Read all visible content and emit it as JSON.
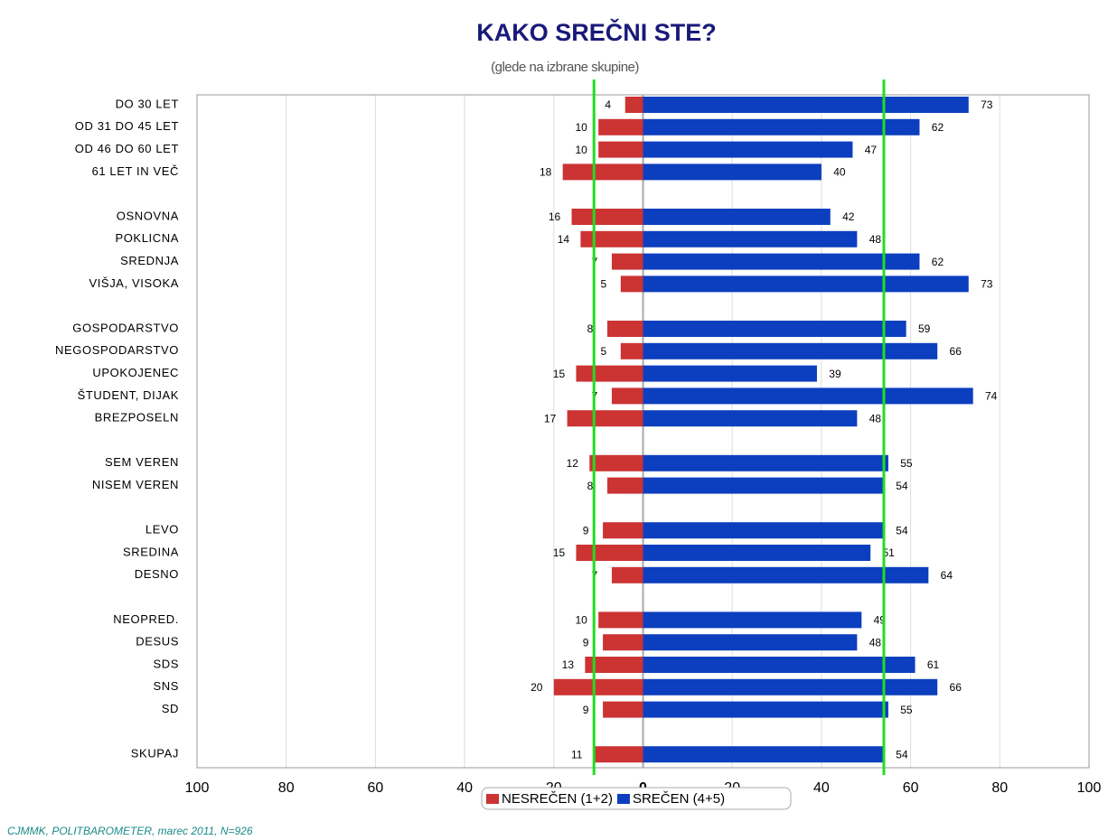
{
  "chart_data": {
    "type": "diverging_bar",
    "title": "KAKO SREČNI STE?",
    "subtitle": "(glede na izbrane skupine)",
    "source": "CJMMK, POLITBAROMETER, marec 2011, N=926",
    "categories": [
      "DO 30 LET",
      "OD 31 DO 45 LET",
      "OD 46 DO 60 LET",
      "61 LET IN VEČ",
      null,
      "OSNOVNA",
      "POKLICNA",
      "SREDNJA",
      "VIŠJA, VISOKA",
      null,
      "GOSPODARSTVO",
      "NEGOSPODARSTVO",
      "UPOKOJENEC",
      "ŠTUDENT, DIJAK",
      "BREZPOSELN",
      null,
      "SEM VEREN",
      "NISEM VEREN",
      null,
      "LEVO",
      "SREDINA",
      "DESNO",
      null,
      "NEOPRED.",
      "DESUS",
      "SDS",
      "SNS",
      "SD",
      null,
      "SKUPAJ"
    ],
    "series": [
      {
        "name": "NESREČEN (1+2)",
        "color": "#cc3333",
        "values": [
          -4,
          -10,
          -10,
          -18,
          null,
          -16,
          -14,
          -7,
          -5,
          null,
          -8,
          -5,
          -15,
          -7,
          -17,
          null,
          -12,
          -8,
          null,
          -9,
          -15,
          -7,
          null,
          -10,
          -9,
          -13,
          -20,
          -9,
          null,
          -11
        ],
        "value_labels": [
          "4",
          "10",
          "10",
          "18",
          null,
          "16",
          "14",
          "7",
          "5",
          null,
          "8",
          "5",
          "15",
          "7",
          "17",
          null,
          "12",
          "8",
          null,
          "9",
          "15",
          "7",
          null,
          "10",
          "9",
          "13",
          "20",
          "9",
          null,
          "11"
        ]
      },
      {
        "name": "SREČEN (4+5)",
        "color": "#0b3fbf",
        "values": [
          73,
          62,
          47,
          40,
          null,
          42,
          48,
          62,
          73,
          null,
          59,
          66,
          39,
          74,
          48,
          null,
          55,
          54,
          null,
          54,
          51,
          64,
          null,
          49,
          48,
          61,
          66,
          55,
          null,
          54
        ]
      }
    ],
    "xlim": [
      -100,
      100
    ],
    "xticks": [
      {
        "value": -100,
        "label": "100"
      },
      {
        "value": -80,
        "label": "80"
      },
      {
        "value": -60,
        "label": "60"
      },
      {
        "value": -40,
        "label": "40"
      },
      {
        "value": -20,
        "label": "20"
      },
      0,
      20,
      40,
      60,
      80,
      100
    ],
    "grid": true,
    "reference_color": "#22dd22",
    "legend": "bottom"
  }
}
